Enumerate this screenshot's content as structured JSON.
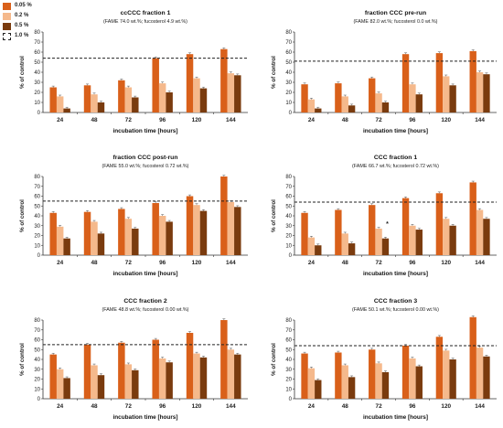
{
  "legend": [
    {
      "label": "0.05 %",
      "color": "#d9601a",
      "style": "fill"
    },
    {
      "label": "0.2 %",
      "color": "#f5b98c",
      "style": "fill"
    },
    {
      "label": "0.5 %",
      "color": "#7a3b0e",
      "style": "fill"
    },
    {
      "label": "1.0 %",
      "color": "#222222",
      "style": "dashed"
    }
  ],
  "chart_data": [
    {
      "type": "bar",
      "title": "ccCCC fraction 1",
      "subtitle": "(FAME 74.0 wt.%; fucosterol 4.9 wt.%)",
      "xlabel": "incubation time [hours]",
      "ylabel": "% of control",
      "categories": [
        "24",
        "48",
        "72",
        "96",
        "120",
        "144"
      ],
      "ylim": [
        0,
        80
      ],
      "yticks": [
        0,
        10,
        20,
        30,
        40,
        50,
        60,
        70,
        80
      ],
      "reference_line": {
        "name": "1.0 %",
        "value": 54
      },
      "series": [
        {
          "name": "0.05 %",
          "values": [
            25,
            27,
            32,
            54,
            58,
            63
          ]
        },
        {
          "name": "0.2 %",
          "values": [
            16,
            18,
            25,
            29,
            34,
            39
          ]
        },
        {
          "name": "0.5 %",
          "values": [
            4,
            10,
            15,
            20,
            24,
            37
          ]
        }
      ]
    },
    {
      "type": "bar",
      "title": "fraction CCC pre-run",
      "subtitle": "(FAME 82.0 wt.%; fucosterol 0.0 wt.%)",
      "xlabel": "incubation time [hours]",
      "ylabel": "% of control",
      "categories": [
        "24",
        "48",
        "72",
        "96",
        "120",
        "144"
      ],
      "ylim": [
        0,
        80
      ],
      "yticks": [
        0,
        10,
        20,
        30,
        40,
        50,
        60,
        70,
        80
      ],
      "reference_line": {
        "name": "1.0 %",
        "value": 51
      },
      "series": [
        {
          "name": "0.05 %",
          "values": [
            28,
            29,
            34,
            58,
            59,
            61
          ]
        },
        {
          "name": "0.2 %",
          "values": [
            13,
            16,
            19,
            28,
            36,
            40
          ]
        },
        {
          "name": "0.5 %",
          "values": [
            4,
            7,
            10,
            18,
            27,
            38
          ]
        }
      ]
    },
    {
      "type": "bar",
      "title": "fraction CCC post-run",
      "subtitle": "(FAME 55.0 wt.%; fucosterol 0.72 wt.%)",
      "xlabel": "incubation time [hours]",
      "ylabel": "% of control",
      "categories": [
        "24",
        "48",
        "72",
        "96",
        "120",
        "144"
      ],
      "ylim": [
        0,
        80
      ],
      "yticks": [
        0,
        10,
        20,
        30,
        40,
        50,
        60,
        70,
        80
      ],
      "reference_line": {
        "name": "1.0 %",
        "value": 55
      },
      "series": [
        {
          "name": "0.05 %",
          "values": [
            43,
            44,
            47,
            53,
            60,
            80
          ]
        },
        {
          "name": "0.2 %",
          "values": [
            29,
            34,
            37,
            40,
            51,
            54
          ]
        },
        {
          "name": "0.5 %",
          "values": [
            17,
            22,
            27,
            34,
            45,
            49
          ]
        }
      ]
    },
    {
      "type": "bar",
      "title": "CCC fraction 1",
      "subtitle": "(FAME 66.7 wt.%; fucosterol 0.72 wt.%)",
      "xlabel": "incubation time [hours]",
      "ylabel": "% of control",
      "categories": [
        "24",
        "48",
        "72",
        "96",
        "120",
        "144"
      ],
      "ylim": [
        0,
        80
      ],
      "yticks": [
        0,
        10,
        20,
        30,
        40,
        50,
        60,
        70,
        80
      ],
      "reference_line": {
        "name": "1.0 %",
        "value": 54
      },
      "annotations": [
        {
          "category": "72",
          "series": "0.2 %",
          "text": "*"
        }
      ],
      "series": [
        {
          "name": "0.05 %",
          "values": [
            43,
            46,
            51,
            58,
            63,
            74
          ]
        },
        {
          "name": "0.2 %",
          "values": [
            18,
            22,
            27,
            30,
            37,
            46
          ]
        },
        {
          "name": "0.5 %",
          "values": [
            10,
            12,
            17,
            26,
            30,
            37
          ]
        }
      ]
    },
    {
      "type": "bar",
      "title": "CCC fraction 2",
      "subtitle": "(FAME 48.8 wt.%; fucosterol 0.00 wt.%)",
      "xlabel": "incubation time [hours]",
      "ylabel": "% of control",
      "categories": [
        "24",
        "48",
        "72",
        "96",
        "120",
        "144"
      ],
      "ylim": [
        0,
        80
      ],
      "yticks": [
        0,
        10,
        20,
        30,
        40,
        50,
        60,
        70,
        80
      ],
      "reference_line": {
        "name": "1.0 %",
        "value": 55
      },
      "series": [
        {
          "name": "0.05 %",
          "values": [
            45,
            55,
            57,
            60,
            67,
            80
          ]
        },
        {
          "name": "0.2 %",
          "values": [
            30,
            34,
            35,
            41,
            46,
            50
          ]
        },
        {
          "name": "0.5 %",
          "values": [
            21,
            24,
            29,
            37,
            42,
            45
          ]
        }
      ]
    },
    {
      "type": "bar",
      "title": "CCC fraction 3",
      "subtitle": "(FAME 50.1 wt.%; fucosterol 0.00 wt.%)",
      "xlabel": "incubation time [hours]",
      "ylabel": "% of control",
      "categories": [
        "24",
        "48",
        "72",
        "96",
        "120",
        "144"
      ],
      "ylim": [
        0,
        80
      ],
      "yticks": [
        0,
        10,
        20,
        30,
        40,
        50,
        60,
        70,
        80
      ],
      "reference_line": {
        "name": "1.0 %",
        "value": 54
      },
      "series": [
        {
          "name": "0.05 %",
          "values": [
            46,
            47,
            50,
            54,
            63,
            83
          ]
        },
        {
          "name": "0.2 %",
          "values": [
            31,
            34,
            36,
            41,
            49,
            52
          ]
        },
        {
          "name": "0.5 %",
          "values": [
            19,
            22,
            27,
            33,
            40,
            43
          ]
        }
      ]
    }
  ]
}
